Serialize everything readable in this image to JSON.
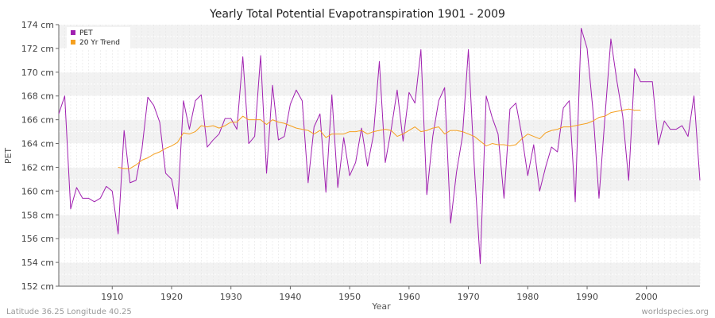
{
  "chart_data": {
    "type": "line",
    "title": "Yearly Total Potential Evapotranspiration 1901 - 2009",
    "xlabel": "Year",
    "ylabel": "PET",
    "xlim": [
      1901,
      2009
    ],
    "ylim": [
      152,
      174
    ],
    "y_unit": "cm",
    "x_ticks": [
      1910,
      1920,
      1930,
      1940,
      1950,
      1960,
      1970,
      1980,
      1990,
      2000
    ],
    "x_tick_labels": [
      "1910",
      "1920",
      "1930",
      "1940",
      "1950",
      "1960",
      "1970",
      "1980",
      "1990",
      "2000"
    ],
    "y_ticks": [
      152,
      154,
      156,
      158,
      160,
      162,
      164,
      166,
      168,
      170,
      172,
      174
    ],
    "y_tick_labels": [
      "152 cm",
      "154 cm",
      "156 cm",
      "158 cm",
      "160 cm",
      "162 cm",
      "164 cm",
      "166 cm",
      "168 cm",
      "170 cm",
      "172 cm",
      "174 cm"
    ],
    "grid": true,
    "legend_position": "top-left",
    "series": [
      {
        "name": "PET",
        "color": "#a020b0",
        "x": [
          1901,
          1902,
          1903,
          1904,
          1905,
          1906,
          1907,
          1908,
          1909,
          1910,
          1911,
          1912,
          1913,
          1914,
          1915,
          1916,
          1917,
          1918,
          1919,
          1920,
          1921,
          1922,
          1923,
          1924,
          1925,
          1926,
          1927,
          1928,
          1929,
          1930,
          1931,
          1932,
          1933,
          1934,
          1935,
          1936,
          1937,
          1938,
          1939,
          1940,
          1941,
          1942,
          1943,
          1944,
          1945,
          1946,
          1947,
          1948,
          1949,
          1950,
          1951,
          1952,
          1953,
          1954,
          1955,
          1956,
          1957,
          1958,
          1959,
          1960,
          1961,
          1962,
          1963,
          1964,
          1965,
          1966,
          1967,
          1968,
          1969,
          1970,
          1971,
          1972,
          1973,
          1974,
          1975,
          1976,
          1977,
          1978,
          1979,
          1980,
          1981,
          1982,
          1983,
          1984,
          1985,
          1986,
          1987,
          1988,
          1989,
          1990,
          1991,
          1992,
          1993,
          1994,
          1995,
          1996,
          1997,
          1998,
          1999,
          2000,
          2001,
          2002,
          2003,
          2004,
          2005,
          2006,
          2007,
          2008,
          2009
        ],
        "values": [
          166.5,
          168.0,
          158.5,
          160.3,
          159.4,
          159.4,
          159.1,
          159.4,
          160.4,
          160.0,
          156.4,
          165.1,
          160.7,
          160.9,
          163.5,
          167.9,
          167.2,
          165.8,
          161.5,
          161.0,
          158.5,
          167.6,
          165.2,
          167.6,
          168.1,
          163.7,
          164.3,
          164.8,
          166.1,
          166.1,
          165.2,
          171.3,
          164.0,
          164.6,
          171.4,
          161.5,
          168.9,
          164.3,
          164.6,
          167.3,
          168.5,
          167.6,
          160.7,
          165.4,
          166.5,
          159.9,
          168.1,
          160.3,
          164.5,
          161.3,
          162.4,
          165.3,
          162.1,
          164.7,
          170.9,
          162.4,
          165.2,
          168.5,
          164.2,
          168.3,
          167.4,
          171.9,
          159.7,
          164.6,
          167.6,
          168.7,
          157.3,
          161.6,
          164.6,
          171.9,
          162.0,
          153.9,
          168.0,
          166.2,
          164.8,
          159.4,
          166.9,
          167.4,
          164.7,
          161.3,
          163.9,
          160.0,
          162.0,
          163.7,
          163.3,
          167.0,
          167.6,
          159.1,
          173.7,
          172.0,
          166.7,
          159.4,
          166.2,
          172.8,
          169.3,
          166.3,
          160.9,
          170.3,
          169.2,
          169.2,
          169.2,
          163.9,
          165.9,
          165.2,
          165.2,
          165.5,
          164.6,
          168.0,
          160.9
        ]
      },
      {
        "name": "20 Yr Trend",
        "color": "#f5a020",
        "x": [
          1911,
          1912,
          1913,
          1914,
          1915,
          1916,
          1917,
          1918,
          1919,
          1920,
          1921,
          1922,
          1923,
          1924,
          1925,
          1926,
          1927,
          1928,
          1929,
          1930,
          1931,
          1932,
          1933,
          1934,
          1935,
          1936,
          1937,
          1938,
          1939,
          1940,
          1941,
          1942,
          1943,
          1944,
          1945,
          1946,
          1947,
          1948,
          1949,
          1950,
          1951,
          1952,
          1953,
          1954,
          1955,
          1956,
          1957,
          1958,
          1959,
          1960,
          1961,
          1962,
          1963,
          1964,
          1965,
          1966,
          1967,
          1968,
          1969,
          1970,
          1971,
          1972,
          1973,
          1974,
          1975,
          1976,
          1977,
          1978,
          1979,
          1980,
          1981,
          1982,
          1983,
          1984,
          1985,
          1986,
          1987,
          1988,
          1989,
          1990,
          1991,
          1992,
          1993,
          1994,
          1995,
          1996,
          1997,
          1998,
          1999
        ],
        "values": [
          162.0,
          161.9,
          161.9,
          162.2,
          162.6,
          162.8,
          163.1,
          163.3,
          163.6,
          163.8,
          164.1,
          164.9,
          164.8,
          165.0,
          165.5,
          165.4,
          165.5,
          165.3,
          165.5,
          165.8,
          165.8,
          166.3,
          166.0,
          166.0,
          166.0,
          165.6,
          166.0,
          165.8,
          165.7,
          165.5,
          165.3,
          165.2,
          165.1,
          164.8,
          165.1,
          164.5,
          164.8,
          164.8,
          164.8,
          165.0,
          165.0,
          165.1,
          164.8,
          165.0,
          165.1,
          165.2,
          165.1,
          164.6,
          164.8,
          165.1,
          165.4,
          165.0,
          165.1,
          165.3,
          165.4,
          164.8,
          165.1,
          165.1,
          165.0,
          164.8,
          164.6,
          164.2,
          163.8,
          164.0,
          163.9,
          163.9,
          163.8,
          163.9,
          164.4,
          164.8,
          164.6,
          164.4,
          164.9,
          165.1,
          165.2,
          165.4,
          165.4,
          165.5,
          165.6,
          165.7,
          165.9,
          166.2,
          166.3,
          166.6,
          166.7,
          166.8,
          166.9,
          166.8,
          166.8
        ]
      }
    ]
  },
  "footer": {
    "left": "Latitude 36.25 Longitude 40.25",
    "right": "worldspecies.org"
  }
}
